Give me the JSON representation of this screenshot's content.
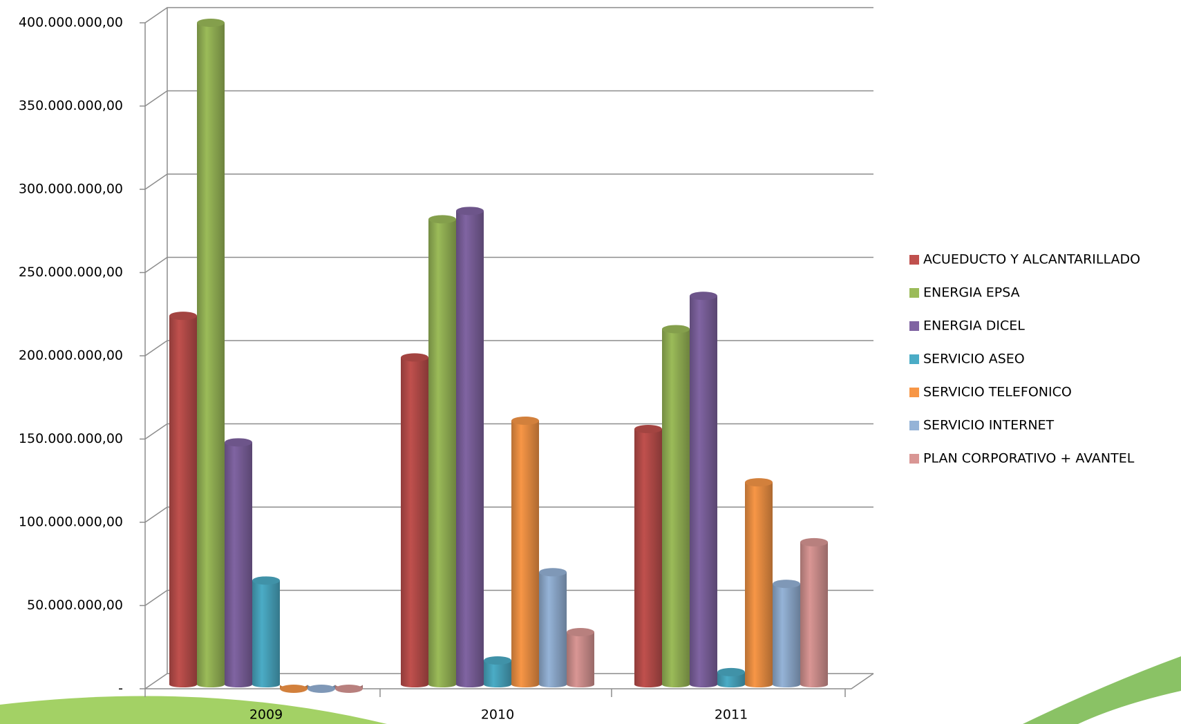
{
  "chart_data": {
    "type": "bar",
    "categories": [
      "2009",
      "2010",
      "2011"
    ],
    "series": [
      {
        "name": "ACUEDUCTO Y ALCANTARILLADO",
        "color": "#c0504d",
        "values": [
          224000000,
          199000000,
          156000000
        ]
      },
      {
        "name": "ENERGIA EPSA",
        "color": "#9bbb59",
        "values": [
          400000000,
          282000000,
          216000000
        ]
      },
      {
        "name": "ENERGIA DICEL",
        "color": "#8064a2",
        "values": [
          148000000,
          287000000,
          236000000
        ]
      },
      {
        "name": "SERVICIO ASEO",
        "color": "#4bacc6",
        "values": [
          65000000,
          17000000,
          10000000
        ]
      },
      {
        "name": "SERVICIO TELEFONICO",
        "color": "#f79646",
        "values": [
          0,
          161000000,
          124000000
        ]
      },
      {
        "name": "SERVICIO INTERNET",
        "color": "#95b3d7",
        "values": [
          0,
          70000000,
          63000000
        ]
      },
      {
        "name": "PLAN CORPORATIVO + AVANTEL",
        "color": "#d99694",
        "values": [
          0,
          34000000,
          88000000
        ]
      }
    ],
    "ylim": [
      0,
      400000000
    ],
    "yticks": [
      {
        "value": 0,
        "label": "-"
      },
      {
        "value": 50000000,
        "label": "50.000.000,00"
      },
      {
        "value": 100000000,
        "label": "100.000.000,00"
      },
      {
        "value": 150000000,
        "label": "150.000.000,00"
      },
      {
        "value": 200000000,
        "label": "200.000.000,00"
      },
      {
        "value": 250000000,
        "label": "250.000.000,00"
      },
      {
        "value": 300000000,
        "label": "300.000.000,00"
      },
      {
        "value": 350000000,
        "label": "350.000.000,00"
      },
      {
        "value": 400000000,
        "label": "400.000.000,00"
      }
    ],
    "grid": true,
    "legend": "right"
  }
}
